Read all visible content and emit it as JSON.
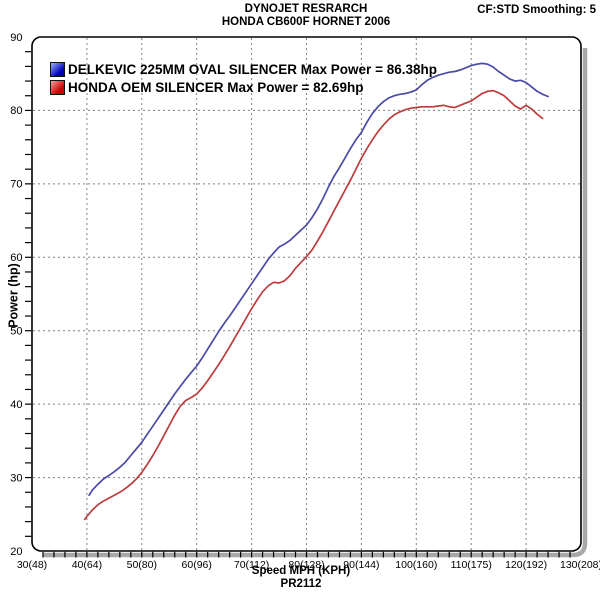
{
  "header": {
    "title_line1": "DYNOJET RESRARCH",
    "title_line2": "HONDA CB600F HORNET 2006",
    "smoothing_label": "CF:STD Smoothing: 5"
  },
  "legend": {
    "items": [
      {
        "id": "delkevic",
        "label": "DELKEVIC 225MM OVAL SILENCER Max Power = 86.38hp",
        "swatch_top": "#9db1f7",
        "swatch_bottom": "#0000bb"
      },
      {
        "id": "oem",
        "label": "HONDA OEM SILENCER Max Power = 82.69hp",
        "swatch_top": "#f7a2a2",
        "swatch_bottom": "#cc0000"
      }
    ]
  },
  "colors": {
    "background": "#ffffff",
    "border": "#000000",
    "grid": "#808080",
    "shadow": "#a8a8a8",
    "tick": "#000000",
    "delkevic_line": "#4a4aa8",
    "oem_line": "#bb3c3c"
  },
  "chart_data": {
    "type": "line",
    "title": "DYNOJET RESRARCH / HONDA CB600F HORNET 2006",
    "xlabel": "Speed MPH (KPH)",
    "ylabel": "Power (hp)",
    "footnote": "PR2112",
    "xlim": [
      30,
      130
    ],
    "ylim": [
      20,
      90
    ],
    "grid": "dashed gray at major ticks, both axes",
    "legend_position": "top-left inside plot",
    "minor_tick_step_x": 2,
    "minor_tick_step_y": 2,
    "x_ticks": [
      {
        "value": 30,
        "label": "30(48)"
      },
      {
        "value": 40,
        "label": "40(64)"
      },
      {
        "value": 50,
        "label": "50(80)"
      },
      {
        "value": 60,
        "label": "60(96)"
      },
      {
        "value": 70,
        "label": "70(112)"
      },
      {
        "value": 80,
        "label": "80(128)"
      },
      {
        "value": 90,
        "label": "90(144)"
      },
      {
        "value": 100,
        "label": "100(160)"
      },
      {
        "value": 110,
        "label": "110(175)"
      },
      {
        "value": 120,
        "label": "120(192)"
      },
      {
        "value": 130,
        "label": "130(208)"
      }
    ],
    "y_ticks": [
      {
        "value": 20,
        "label": "20"
      },
      {
        "value": 30,
        "label": "30"
      },
      {
        "value": 40,
        "label": "40"
      },
      {
        "value": 50,
        "label": "50"
      },
      {
        "value": 60,
        "label": "60"
      },
      {
        "value": 70,
        "label": "70"
      },
      {
        "value": 80,
        "label": "80"
      },
      {
        "value": 90,
        "label": "90"
      }
    ],
    "series": [
      {
        "id": "delkevic",
        "name": "DELKEVIC 225MM OVAL SILENCER",
        "max_power_hp": 86.38,
        "color": "#4a4aa8",
        "points": [
          [
            40.4,
            27.6
          ],
          [
            41,
            28.3
          ],
          [
            42,
            29.1
          ],
          [
            43,
            29.8
          ],
          [
            44,
            30.3
          ],
          [
            45,
            30.8
          ],
          [
            46,
            31.4
          ],
          [
            47,
            32.1
          ],
          [
            48,
            33.0
          ],
          [
            49,
            33.9
          ],
          [
            50,
            34.8
          ],
          [
            51,
            35.9
          ],
          [
            52,
            37.0
          ],
          [
            53,
            38.1
          ],
          [
            54,
            39.2
          ],
          [
            55,
            40.3
          ],
          [
            56,
            41.4
          ],
          [
            57,
            42.4
          ],
          [
            58,
            43.4
          ],
          [
            59,
            44.3
          ],
          [
            60,
            45.2
          ],
          [
            61,
            46.3
          ],
          [
            62,
            47.5
          ],
          [
            63,
            48.7
          ],
          [
            64,
            49.9
          ],
          [
            65,
            51.0
          ],
          [
            66,
            52.0
          ],
          [
            67,
            53.1
          ],
          [
            68,
            54.2
          ],
          [
            69,
            55.3
          ],
          [
            70,
            56.4
          ],
          [
            71,
            57.5
          ],
          [
            72,
            58.6
          ],
          [
            73,
            59.7
          ],
          [
            74,
            60.6
          ],
          [
            75,
            61.4
          ],
          [
            76,
            61.8
          ],
          [
            77,
            62.3
          ],
          [
            78,
            63.0
          ],
          [
            79,
            63.7
          ],
          [
            80,
            64.4
          ],
          [
            81,
            65.4
          ],
          [
            82,
            66.6
          ],
          [
            83,
            68.0
          ],
          [
            84,
            69.6
          ],
          [
            85,
            71.0
          ],
          [
            86,
            72.2
          ],
          [
            87,
            73.5
          ],
          [
            88,
            74.8
          ],
          [
            89,
            76.0
          ],
          [
            90,
            77.0
          ],
          [
            91,
            78.4
          ],
          [
            92,
            79.6
          ],
          [
            93,
            80.5
          ],
          [
            94,
            81.2
          ],
          [
            95,
            81.7
          ],
          [
            96,
            82.0
          ],
          [
            97,
            82.2
          ],
          [
            98,
            82.3
          ],
          [
            99,
            82.5
          ],
          [
            100,
            82.8
          ],
          [
            101,
            83.5
          ],
          [
            102,
            84.1
          ],
          [
            103,
            84.5
          ],
          [
            104,
            84.8
          ],
          [
            105,
            85.0
          ],
          [
            106,
            85.2
          ],
          [
            107,
            85.3
          ],
          [
            108,
            85.5
          ],
          [
            109,
            85.8
          ],
          [
            110,
            86.1
          ],
          [
            111,
            86.3
          ],
          [
            112,
            86.4
          ],
          [
            113,
            86.3
          ],
          [
            114,
            85.9
          ],
          [
            115,
            85.3
          ],
          [
            116,
            84.8
          ],
          [
            117,
            84.3
          ],
          [
            118,
            84.0
          ],
          [
            119,
            84.1
          ],
          [
            120,
            83.8
          ],
          [
            121,
            83.2
          ],
          [
            122,
            82.6
          ],
          [
            123,
            82.2
          ],
          [
            124,
            81.9
          ]
        ]
      },
      {
        "id": "oem",
        "name": "HONDA OEM SILENCER",
        "max_power_hp": 82.69,
        "color": "#bb3c3c",
        "points": [
          [
            39.6,
            24.3
          ],
          [
            40,
            24.7
          ],
          [
            41,
            25.6
          ],
          [
            42,
            26.3
          ],
          [
            43,
            26.8
          ],
          [
            44,
            27.2
          ],
          [
            45,
            27.6
          ],
          [
            46,
            28.0
          ],
          [
            47,
            28.5
          ],
          [
            48,
            29.1
          ],
          [
            49,
            29.8
          ],
          [
            50,
            30.7
          ],
          [
            51,
            31.8
          ],
          [
            52,
            33.0
          ],
          [
            53,
            34.3
          ],
          [
            54,
            35.7
          ],
          [
            55,
            37.1
          ],
          [
            56,
            38.5
          ],
          [
            57,
            39.7
          ],
          [
            58,
            40.5
          ],
          [
            59,
            40.9
          ],
          [
            60,
            41.4
          ],
          [
            61,
            42.2
          ],
          [
            62,
            43.2
          ],
          [
            63,
            44.3
          ],
          [
            64,
            45.4
          ],
          [
            65,
            46.6
          ],
          [
            66,
            47.8
          ],
          [
            67,
            49.1
          ],
          [
            68,
            50.4
          ],
          [
            69,
            51.7
          ],
          [
            70,
            53.0
          ],
          [
            71,
            54.2
          ],
          [
            72,
            55.3
          ],
          [
            73,
            56.1
          ],
          [
            74,
            56.6
          ],
          [
            75,
            56.5
          ],
          [
            76,
            56.8
          ],
          [
            77,
            57.5
          ],
          [
            78,
            58.5
          ],
          [
            79,
            59.3
          ],
          [
            80,
            60.1
          ],
          [
            81,
            61.0
          ],
          [
            82,
            62.2
          ],
          [
            83,
            63.5
          ],
          [
            84,
            64.9
          ],
          [
            85,
            66.3
          ],
          [
            86,
            67.7
          ],
          [
            87,
            69.1
          ],
          [
            88,
            70.5
          ],
          [
            89,
            72.0
          ],
          [
            90,
            73.5
          ],
          [
            91,
            74.8
          ],
          [
            92,
            76.0
          ],
          [
            93,
            77.1
          ],
          [
            94,
            78.0
          ],
          [
            95,
            78.8
          ],
          [
            96,
            79.4
          ],
          [
            97,
            79.8
          ],
          [
            98,
            80.1
          ],
          [
            99,
            80.3
          ],
          [
            100,
            80.4
          ],
          [
            101,
            80.5
          ],
          [
            102,
            80.5
          ],
          [
            103,
            80.5
          ],
          [
            104,
            80.6
          ],
          [
            105,
            80.7
          ],
          [
            106,
            80.5
          ],
          [
            107,
            80.4
          ],
          [
            108,
            80.7
          ],
          [
            109,
            81.0
          ],
          [
            110,
            81.3
          ],
          [
            111,
            81.8
          ],
          [
            112,
            82.3
          ],
          [
            113,
            82.6
          ],
          [
            114,
            82.7
          ],
          [
            115,
            82.4
          ],
          [
            116,
            82.0
          ],
          [
            117,
            81.3
          ],
          [
            118,
            80.6
          ],
          [
            119,
            80.2
          ],
          [
            120,
            80.7
          ],
          [
            121,
            80.2
          ],
          [
            122,
            79.5
          ],
          [
            123,
            78.9
          ]
        ]
      }
    ]
  }
}
